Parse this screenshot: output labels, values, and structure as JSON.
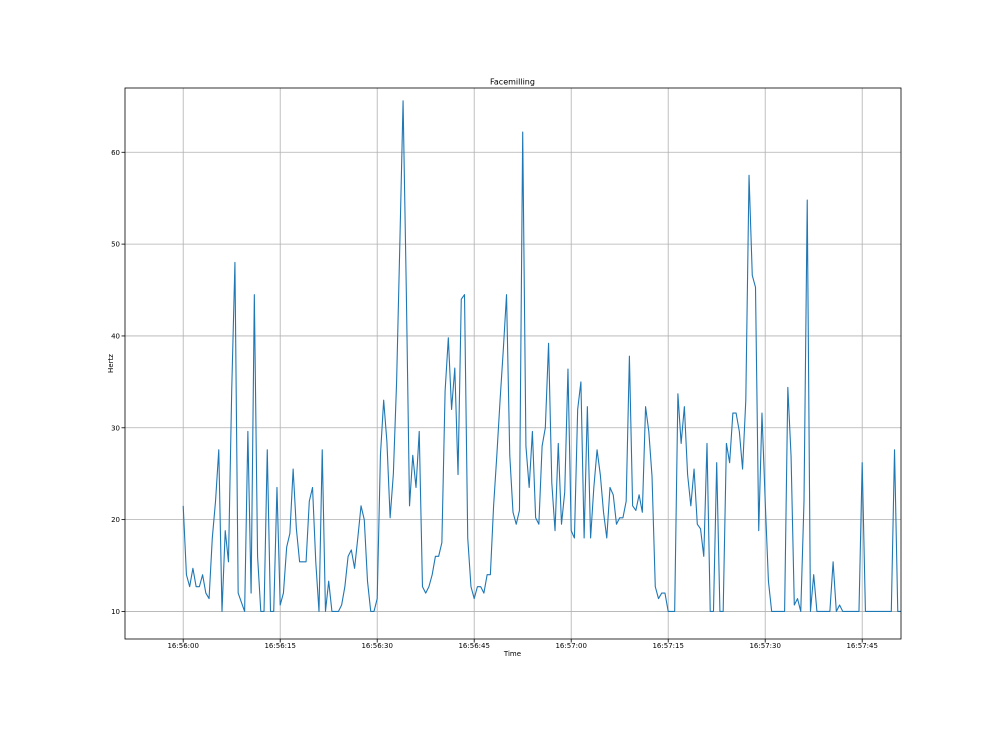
{
  "chart_data": {
    "type": "line",
    "title": "Facemilling",
    "xlabel": "Time",
    "ylabel": "Hertz",
    "grid": true,
    "legend": "none",
    "x_start": "16:56:00",
    "x_step_seconds": 0.5,
    "xlim": [
      "16:55:51",
      "16:57:51"
    ],
    "ylim": [
      7,
      67
    ],
    "xticks": [
      "16:56:00",
      "16:56:15",
      "16:56:30",
      "16:56:45",
      "16:57:00",
      "16:57:15",
      "16:57:30",
      "16:57:45"
    ],
    "yticks": [
      10,
      20,
      30,
      40,
      50,
      60
    ],
    "colors": {
      "line": "#1f77b4"
    },
    "series": [
      {
        "values": [
          21.5,
          14,
          12.7,
          14.7,
          12.7,
          12.7,
          14,
          12,
          11.4,
          18,
          22,
          27.6,
          10,
          18.8,
          15.4,
          34,
          48,
          12,
          11,
          10,
          29.6,
          12,
          44.5,
          16,
          10,
          10,
          27.6,
          10,
          10,
          23.5,
          10.7,
          12,
          17,
          18.5,
          25.5,
          19,
          15.4,
          15.4,
          15.4,
          22,
          23.5,
          15.4,
          10,
          27.6,
          10,
          13.3,
          10,
          10,
          10,
          10.7,
          12.7,
          16,
          16.7,
          14.7,
          18,
          21.5,
          20,
          13.3,
          10,
          10,
          11.4,
          27,
          33,
          28.5,
          20.2,
          25,
          35,
          50,
          65.6,
          45,
          21.5,
          27,
          23.5,
          29.6,
          12.7,
          12,
          12.7,
          14,
          16,
          16,
          17.5,
          34,
          39.8,
          32,
          36.5,
          24.9,
          44,
          44.5,
          18,
          12.7,
          11.4,
          12.7,
          12.7,
          12,
          14,
          14,
          21.5,
          27,
          33,
          38.5,
          44.5,
          27,
          20.8,
          19.5,
          21,
          62.2,
          28,
          23.5,
          29.6,
          20.2,
          19.5,
          28,
          30,
          39.2,
          24,
          18.8,
          28.3,
          19.5,
          23,
          36.4,
          18.8,
          18,
          32,
          35,
          18,
          32.3,
          18,
          23.5,
          27.6,
          24.9,
          20.8,
          18,
          23.5,
          22.7,
          19.5,
          20.2,
          20.2,
          22,
          37.8,
          21.5,
          21,
          22.7,
          20.8,
          32.3,
          29.6,
          24.7,
          12.7,
          11.4,
          12,
          12,
          10,
          10,
          10,
          33.7,
          28.3,
          32.3,
          24.9,
          21.5,
          25.5,
          19.5,
          19,
          16,
          28.3,
          10,
          10,
          26.2,
          10,
          10,
          28.3,
          26.2,
          31.6,
          31.6,
          29.6,
          25.5,
          33,
          57.5,
          46.6,
          45.3,
          18.8,
          31.6,
          22,
          13.3,
          10,
          10,
          10,
          10,
          10,
          34.4,
          26.9,
          10.7,
          11.4,
          10,
          22,
          54.8,
          10,
          14,
          10,
          10,
          10,
          10,
          10,
          15.4,
          10,
          10.7,
          10,
          10,
          10,
          10,
          10,
          10,
          26.2,
          10,
          10,
          10,
          10,
          10,
          10,
          10,
          10,
          10,
          27.6,
          10,
          10
        ]
      }
    ]
  }
}
